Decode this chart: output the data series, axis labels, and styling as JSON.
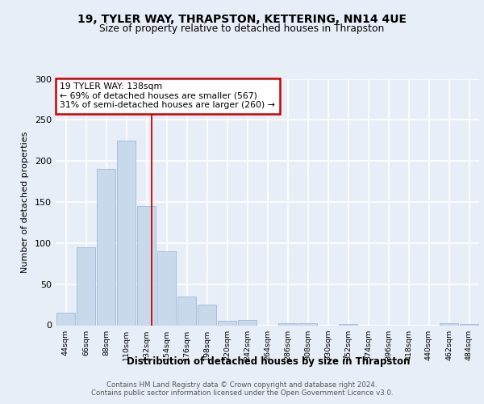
{
  "title1": "19, TYLER WAY, THRAPSTON, KETTERING, NN14 4UE",
  "title2": "Size of property relative to detached houses in Thrapston",
  "xlabel": "Distribution of detached houses by size in Thrapston",
  "ylabel": "Number of detached properties",
  "bin_labels": [
    "44sqm",
    "66sqm",
    "88sqm",
    "110sqm",
    "132sqm",
    "154sqm",
    "176sqm",
    "198sqm",
    "220sqm",
    "242sqm",
    "264sqm",
    "286sqm",
    "308sqm",
    "330sqm",
    "352sqm",
    "374sqm",
    "396sqm",
    "418sqm",
    "440sqm",
    "462sqm",
    "484sqm"
  ],
  "bar_heights": [
    15,
    95,
    190,
    225,
    145,
    90,
    35,
    25,
    5,
    6,
    0,
    2,
    2,
    0,
    1,
    0,
    0,
    0,
    0,
    2,
    1
  ],
  "bar_color": "#c9d9ec",
  "bar_edge_color": "#a0b8d8",
  "vline_x": 4.27,
  "annotation_text": "19 TYLER WAY: 138sqm\n← 69% of detached houses are smaller (567)\n31% of semi-detached houses are larger (260) →",
  "annotation_box_color": "#ffffff",
  "annotation_box_edge": "#cc0000",
  "vline_color": "#cc0000",
  "ylim": [
    0,
    300
  ],
  "yticks": [
    0,
    50,
    100,
    150,
    200,
    250,
    300
  ],
  "footnote": "Contains HM Land Registry data © Crown copyright and database right 2024.\nContains public sector information licensed under the Open Government Licence v3.0.",
  "background_color": "#e8eef7",
  "plot_background": "#e8eef7",
  "grid_color": "#ffffff"
}
